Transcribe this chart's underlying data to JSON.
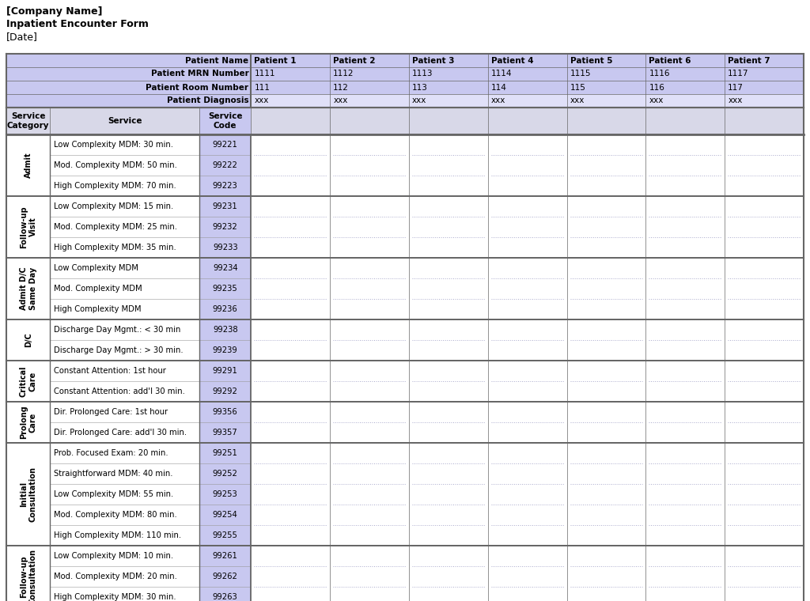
{
  "title_lines": [
    {
      "text": "[Company Name]",
      "bold": true
    },
    {
      "text": "Inpatient Encounter Form",
      "bold": true
    },
    {
      "text": "[Date]",
      "bold": false
    }
  ],
  "header_bg": "#c8c8f0",
  "header_diag_bg": "#e0e0f8",
  "service_code_bg": "#c8c8f0",
  "col_header_bg": "#d8d8e8",
  "patient_col_bg": "#e8e8f8",
  "white_bg": "#ffffff",
  "grid_color": "#666666",
  "dotted_color": "#aaaacc",
  "text_color": "#000000",
  "patient_headers": [
    "Patient Name",
    "Patient MRN Number",
    "Patient Room Number",
    "Patient Diagnosis"
  ],
  "patients": [
    {
      "name": "Patient 1",
      "mrn": "1111",
      "room": "111",
      "diag": "xxx"
    },
    {
      "name": "Patient 2",
      "mrn": "1112",
      "room": "112",
      "diag": "xxx"
    },
    {
      "name": "Patient 3",
      "mrn": "1113",
      "room": "113",
      "diag": "xxx"
    },
    {
      "name": "Patient 4",
      "mrn": "1114",
      "room": "114",
      "diag": "xxx"
    },
    {
      "name": "Patient 5",
      "mrn": "1115",
      "room": "115",
      "diag": "xxx"
    },
    {
      "name": "Patient 6",
      "mrn": "1116",
      "room": "116",
      "diag": "xxx"
    },
    {
      "name": "Patient 7",
      "mrn": "1117",
      "room": "117",
      "diag": "xxx"
    }
  ],
  "categories": [
    {
      "name": "Admit",
      "rows": [
        {
          "service": "Low Complexity MDM: 30 min.",
          "code": "99221"
        },
        {
          "service": "Mod. Complexity MDM: 50 min.",
          "code": "99222"
        },
        {
          "service": "High Complexity MDM: 70 min.",
          "code": "99223"
        }
      ]
    },
    {
      "name": "Follow-up\nVisit",
      "rows": [
        {
          "service": "Low Complexity MDM: 15 min.",
          "code": "99231"
        },
        {
          "service": "Mod. Complexity MDM: 25 min.",
          "code": "99232"
        },
        {
          "service": "High Complexity MDM: 35 min.",
          "code": "99233"
        }
      ]
    },
    {
      "name": "Admit D/C\nSame Day",
      "rows": [
        {
          "service": "Low Complexity MDM",
          "code": "99234"
        },
        {
          "service": "Mod. Complexity MDM",
          "code": "99235"
        },
        {
          "service": "High Complexity MDM",
          "code": "99236"
        }
      ]
    },
    {
      "name": "D/C",
      "rows": [
        {
          "service": "Discharge Day Mgmt.: < 30 min",
          "code": "99238"
        },
        {
          "service": "Discharge Day Mgmt.: > 30 min.",
          "code": "99239"
        }
      ]
    },
    {
      "name": "Critical\nCare",
      "rows": [
        {
          "service": "Constant Attention: 1st hour",
          "code": "99291"
        },
        {
          "service": "Constant Attention: add'l 30 min.",
          "code": "99292"
        }
      ]
    },
    {
      "name": "Prolong\nCare",
      "rows": [
        {
          "service": "Dir. Prolonged Care: 1st hour",
          "code": "99356"
        },
        {
          "service": "Dir. Prolonged Care: add'l 30 min.",
          "code": "99357"
        }
      ]
    },
    {
      "name": "Initial\nConsultation",
      "rows": [
        {
          "service": "Prob. Focused Exam: 20 min.",
          "code": "99251"
        },
        {
          "service": "Straightforward MDM: 40 min.",
          "code": "99252"
        },
        {
          "service": "Low Complexity MDM: 55 min.",
          "code": "99253"
        },
        {
          "service": "Mod. Complexity MDM: 80 min.",
          "code": "99254"
        },
        {
          "service": "High Complexity MDM: 110 min.",
          "code": "99255"
        }
      ]
    },
    {
      "name": "Follow-up\nConsultation",
      "rows": [
        {
          "service": "Low Complexity MDM: 10 min.",
          "code": "99261"
        },
        {
          "service": "Mod. Complexity MDM: 20 min.",
          "code": "99262"
        },
        {
          "service": "High Complexity MDM: 30 min.",
          "code": "99263"
        }
      ]
    }
  ],
  "fig_width": 10.24,
  "fig_height": 7.6
}
